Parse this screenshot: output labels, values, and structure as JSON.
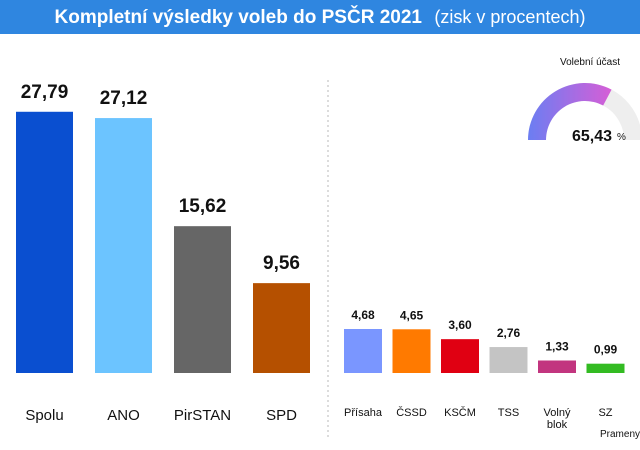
{
  "title": "Kompletní výsledky voleb do PSČR 2021",
  "subtitle": "(zisk v procentech)",
  "source_label": "Prameny",
  "turnout": {
    "label": "Volební účast",
    "value": 65.43,
    "value_text": "65,43",
    "unit": "%"
  },
  "chart_data": [
    {
      "type": "bar",
      "categories": [
        "Spolu",
        "ANO",
        "PirSTAN",
        "SPD"
      ],
      "values": [
        27.79,
        27.12,
        15.62,
        9.56
      ],
      "value_labels": [
        "27,79",
        "27,12",
        "15,62",
        "9,56"
      ],
      "colors": [
        "#0a4fd0",
        "#6cc4ff",
        "#666666",
        "#b55000"
      ]
    },
    {
      "type": "bar",
      "categories": [
        "Přísaha",
        "ČSSD",
        "KSČM",
        "TSS",
        "Volný blok",
        "SZ"
      ],
      "category_lines": [
        [
          "Přísaha"
        ],
        [
          "ČSSD"
        ],
        [
          "KSČM"
        ],
        [
          "TSS"
        ],
        [
          "Volný",
          "blok"
        ],
        [
          "SZ"
        ]
      ],
      "values": [
        4.68,
        4.65,
        3.6,
        2.76,
        1.33,
        0.99
      ],
      "value_labels": [
        "4,68",
        "4,65",
        "3,60",
        "2,76",
        "1,33",
        "0,99"
      ],
      "colors": [
        "#7a96ff",
        "#ff7a00",
        "#e00012",
        "#c4c4c4",
        "#c2357f",
        "#33bb22"
      ]
    }
  ]
}
